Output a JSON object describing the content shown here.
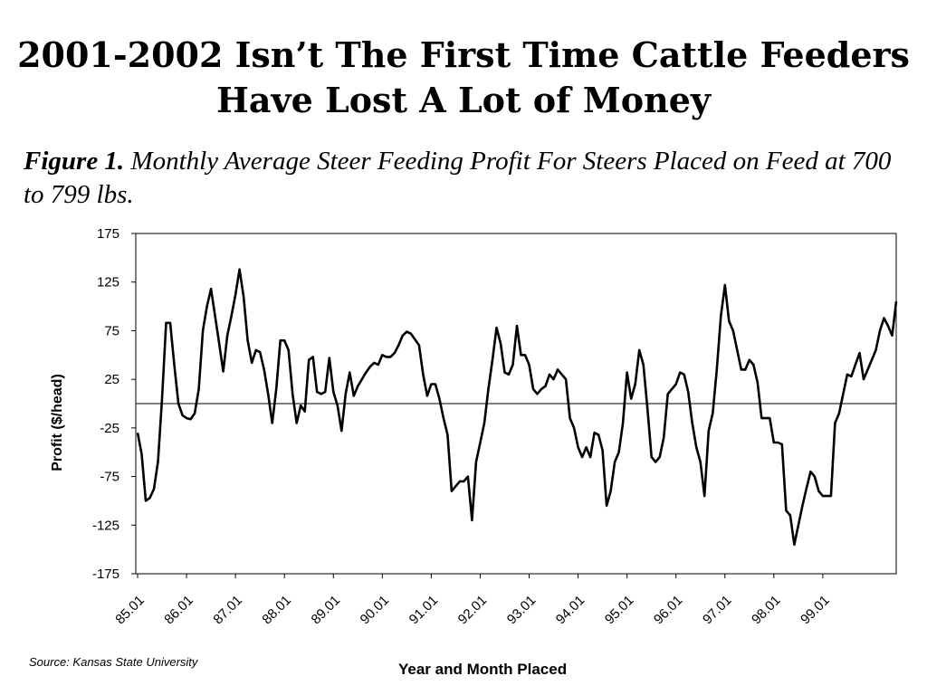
{
  "slide": {
    "title_line1": "2001-2002 Isn’t The First Time Cattle Feeders",
    "title_line2": "Have Lost A Lot of Money",
    "figure_label": "Figure 1.",
    "figure_caption": "Monthly Average Steer Feeding Profit For Steers Placed on Feed at 700 to 799 lbs.",
    "source": "Source: Kansas State University"
  },
  "chart_data": {
    "type": "line",
    "xlabel": "Year and Month Placed",
    "ylabel": "Profit ($/head)",
    "ylim": [
      -175,
      175
    ],
    "yticks": [
      "175",
      "125",
      "75",
      "25",
      "-25",
      "-75",
      "-125",
      "-175"
    ],
    "xticks": [
      "85.01",
      "86.01",
      "87.01",
      "88.01",
      "89.01",
      "90.01",
      "91.01",
      "92.01",
      "93.01",
      "94.01",
      "95.01",
      "96.01",
      "97.01",
      "98.01",
      "99.01"
    ],
    "reference_line": 0,
    "grid": false,
    "line_color": "#000000",
    "series": [
      {
        "values": [
          -30,
          -52,
          -100,
          -97,
          -88,
          -60,
          5,
          83,
          83,
          40,
          0,
          -12,
          -15,
          -16,
          -10,
          15,
          75,
          100,
          118,
          90,
          62,
          33,
          70,
          90,
          112,
          138,
          110,
          65,
          42,
          55,
          53,
          35,
          10,
          -20,
          15,
          65,
          65,
          55,
          10,
          -20,
          -2,
          -8,
          45,
          48,
          12,
          10,
          12,
          47,
          12,
          -2,
          -28,
          10,
          32,
          8,
          18,
          25,
          32,
          38,
          42,
          40,
          50,
          48,
          48,
          52,
          60,
          70,
          74,
          72,
          66,
          60,
          30,
          8,
          20,
          20,
          5,
          -15,
          -32,
          -90,
          -85,
          -80,
          -80,
          -75,
          -120,
          -60,
          -40,
          -20,
          15,
          45,
          78,
          62,
          32,
          30,
          40,
          80,
          50,
          50,
          40,
          15,
          10,
          15,
          18,
          30,
          25,
          35,
          30,
          25,
          -15,
          -25,
          -45,
          -55,
          -45,
          -55,
          -30,
          -32,
          -48,
          -105,
          -90,
          -60,
          -50,
          -20,
          32,
          5,
          20,
          55,
          40,
          -5,
          -55,
          -60,
          -55,
          -35,
          10,
          15,
          20,
          32,
          30,
          12,
          -20,
          -45,
          -60,
          -95,
          -28,
          -10,
          35,
          90,
          122,
          85,
          75,
          55,
          35,
          35,
          45,
          40,
          22,
          -15,
          -15,
          -15,
          -40,
          -40,
          -42,
          -110,
          -115,
          -145,
          -125,
          -105,
          -87,
          -70,
          -75,
          -90,
          -95,
          -95,
          -95,
          -20,
          -10,
          10,
          30,
          28,
          40,
          52,
          25,
          35,
          45,
          55,
          75,
          88,
          80,
          70,
          105
        ]
      }
    ]
  }
}
